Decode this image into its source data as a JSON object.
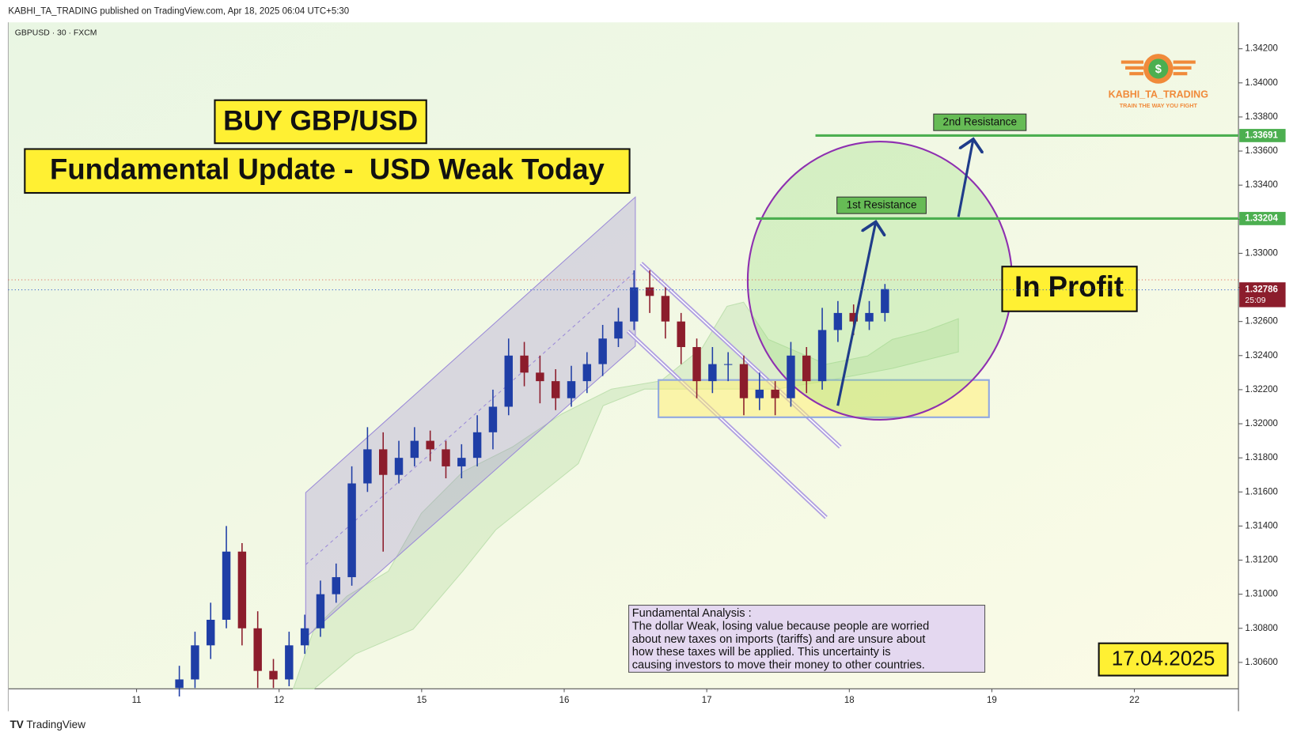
{
  "header": {
    "publisher": "KABHI_TA_TRADING published on TradingView.com, Apr 18, 2025 06:04 UTC+5:30",
    "footer": "TradingView"
  },
  "chart_data": {
    "type": "candlestick",
    "symbol": "GBPUSD · 30 · FXCM",
    "x": [
      0.3,
      0.41,
      0.52,
      0.63,
      0.74,
      0.85,
      0.96,
      1.07,
      1.18,
      1.29,
      1.4,
      1.51,
      1.62,
      1.73,
      1.84,
      1.95,
      2.06,
      2.17,
      2.28,
      2.39,
      2.5,
      2.61,
      2.72,
      2.83,
      2.94,
      3.05,
      3.16,
      3.27,
      3.38,
      3.49,
      3.6,
      3.71,
      3.82,
      3.93,
      4.04,
      4.15,
      4.26,
      4.37,
      4.48,
      4.59,
      4.7,
      4.81,
      4.92,
      5.03,
      5.14,
      5.25
    ],
    "open": [
      1.3045,
      1.305,
      1.307,
      1.3085,
      1.3125,
      1.308,
      1.3055,
      1.305,
      1.307,
      1.308,
      1.31,
      1.311,
      1.3165,
      1.3185,
      1.317,
      1.318,
      1.319,
      1.3185,
      1.3175,
      1.318,
      1.3195,
      1.321,
      1.324,
      1.323,
      1.3225,
      1.3215,
      1.3225,
      1.3235,
      1.325,
      1.326,
      1.328,
      1.3275,
      1.326,
      1.3245,
      1.3225,
      1.3235,
      1.3235,
      1.3215,
      1.322,
      1.3215,
      1.324,
      1.3225,
      1.3255,
      1.3265,
      1.326,
      1.3265
    ],
    "high": [
      1.3058,
      1.3078,
      1.3095,
      1.314,
      1.313,
      1.309,
      1.3062,
      1.3078,
      1.3088,
      1.3108,
      1.3118,
      1.3175,
      1.3198,
      1.3195,
      1.319,
      1.3198,
      1.3196,
      1.319,
      1.3188,
      1.3205,
      1.322,
      1.325,
      1.3248,
      1.324,
      1.3232,
      1.3234,
      1.3242,
      1.3258,
      1.3268,
      1.329,
      1.329,
      1.328,
      1.3265,
      1.325,
      1.3245,
      1.3242,
      1.324,
      1.323,
      1.3225,
      1.3248,
      1.3245,
      1.3268,
      1.3272,
      1.327,
      1.3272,
      1.3282
    ],
    "low": [
      1.304,
      1.3045,
      1.3062,
      1.308,
      1.307,
      1.3045,
      1.3045,
      1.3046,
      1.3065,
      1.3075,
      1.3095,
      1.3105,
      1.316,
      1.3125,
      1.3165,
      1.3175,
      1.3178,
      1.3168,
      1.3168,
      1.3175,
      1.3185,
      1.3205,
      1.3222,
      1.3212,
      1.3208,
      1.321,
      1.3218,
      1.3228,
      1.3245,
      1.3255,
      1.3265,
      1.325,
      1.3235,
      1.3215,
      1.3218,
      1.3225,
      1.3205,
      1.3208,
      1.3205,
      1.321,
      1.3218,
      1.322,
      1.3248,
      1.3252,
      1.3255,
      1.326
    ],
    "close": [
      1.305,
      1.307,
      1.3085,
      1.3125,
      1.308,
      1.3055,
      1.305,
      1.307,
      1.308,
      1.31,
      1.311,
      1.3165,
      1.3185,
      1.317,
      1.318,
      1.319,
      1.3185,
      1.3175,
      1.318,
      1.3195,
      1.321,
      1.324,
      1.323,
      1.3225,
      1.3215,
      1.3225,
      1.3235,
      1.325,
      1.326,
      1.328,
      1.3275,
      1.326,
      1.3245,
      1.3225,
      1.3235,
      1.3235,
      1.3215,
      1.322,
      1.3215,
      1.324,
      1.3225,
      1.3255,
      1.3265,
      1.326,
      1.3265,
      1.3279
    ],
    "up_color": "#1f3ea6",
    "down_color": "#8c1d2c",
    "xlim": [
      -0.9,
      7.73
    ],
    "xticks": [
      {
        "value": 0,
        "label": "11"
      },
      {
        "value": 1,
        "label": "12"
      },
      {
        "value": 2,
        "label": "15"
      },
      {
        "value": 3,
        "label": "16"
      },
      {
        "value": 4,
        "label": "17"
      },
      {
        "value": 5,
        "label": "18"
      },
      {
        "value": 6,
        "label": "19"
      },
      {
        "value": 7,
        "label": "22"
      }
    ],
    "ylim": [
      1.30445,
      1.34355
    ],
    "yticks": [
      {
        "value": 1.306,
        "label": "1.30600"
      },
      {
        "value": 1.308,
        "label": "1.30800"
      },
      {
        "value": 1.31,
        "label": "1.31000"
      },
      {
        "value": 1.312,
        "label": "1.31200"
      },
      {
        "value": 1.314,
        "label": "1.31400"
      },
      {
        "value": 1.316,
        "label": "1.31600"
      },
      {
        "value": 1.318,
        "label": "1.31800"
      },
      {
        "value": 1.32,
        "label": "1.32000"
      },
      {
        "value": 1.322,
        "label": "1.32200"
      },
      {
        "value": 1.324,
        "label": "1.32400"
      },
      {
        "value": 1.326,
        "label": "1.32600"
      },
      {
        "value": 1.328,
        "label": "1.32800"
      },
      {
        "value": 1.33,
        "label": "1.33000"
      },
      {
        "value": 1.332,
        "label": "1.33200"
      },
      {
        "value": 1.334,
        "label": "1.33400"
      },
      {
        "value": 1.336,
        "label": "1.33600"
      },
      {
        "value": 1.338,
        "label": "1.33800"
      },
      {
        "value": 1.34,
        "label": "1.34000"
      },
      {
        "value": 1.342,
        "label": "1.34200"
      }
    ],
    "levels": [
      {
        "name": "2nd Resistance",
        "value": 1.33691
      },
      {
        "name": "1st Resistance",
        "value": 1.33204
      }
    ],
    "last_price": 1.32786,
    "countdown": "25:09",
    "annotations": {
      "buy": "BUY GBP/USD",
      "headline": "Fundamental Update -  USD Weak Today",
      "status": "In Profit",
      "date": "17.04.2025",
      "analysis_title": "Fundamental Analysis :",
      "analysis_lines": [
        "The dollar Weak, losing value because people are worried",
        "about new taxes on imports (tariffs) and are unsure about",
        "how these taxes will be applied. This uncertainty is",
        "causing investors to move their money to other countries."
      ],
      "logo": "KABHI_TA_TRADING",
      "logo_symbol": "$",
      "tagline": "TRAIN THE WAY YOU FIGHT"
    }
  }
}
